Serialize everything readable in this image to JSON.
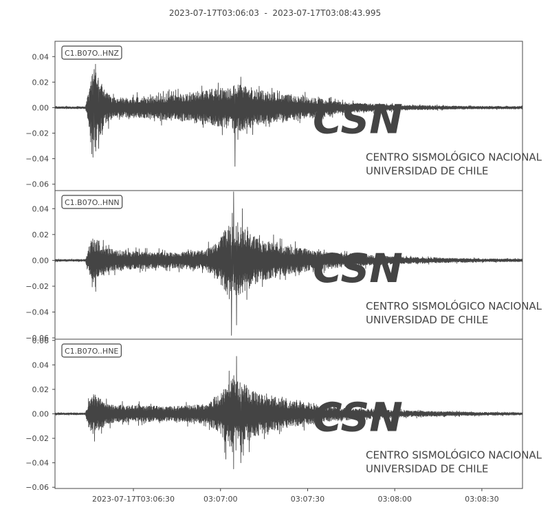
{
  "title": "2023-07-17T03:06:03  -  2023-07-17T03:08:43.995",
  "colors": {
    "trace": "#444444",
    "frame": "#444444",
    "watermark": "#e6e6e6"
  },
  "watermark": {
    "logo": "CSN",
    "line1": "CENTRO SISMOLÓGICO NACIONAL",
    "line2": "UNIVERSIDAD DE CHILE"
  },
  "chart_data": [
    {
      "type": "line",
      "label": "C1.B07O..HNZ",
      "x_range_seconds": [
        0,
        160.995
      ],
      "ylim": [
        -0.065,
        0.052
      ],
      "yticks": [
        0.04,
        0.02,
        0.0,
        -0.02,
        -0.04,
        -0.06
      ],
      "ytick_labels": [
        "0.04",
        "0.02",
        "0.00",
        "−0.02",
        "−0.04",
        "−0.06"
      ],
      "onset_s": 10.5,
      "coda_s": 61,
      "envelope_time_s": [
        0,
        10.5,
        11.5,
        13,
        15,
        17,
        20,
        30,
        45,
        52,
        60,
        62,
        70,
        85,
        100,
        120,
        140,
        161
      ],
      "envelope_amp": [
        0.0008,
        0.0008,
        0.012,
        0.028,
        0.024,
        0.014,
        0.008,
        0.008,
        0.011,
        0.014,
        0.016,
        0.02,
        0.014,
        0.009,
        0.004,
        0.002,
        0.0012,
        0.001
      ],
      "peaks": [
        {
          "t": 13.5,
          "y": 0.03
        },
        {
          "t": 14.0,
          "y": -0.034
        },
        {
          "t": 15.0,
          "y": -0.032
        },
        {
          "t": 62.0,
          "y": -0.046
        },
        {
          "t": 64.0,
          "y": 0.024
        },
        {
          "t": 63.0,
          "y": -0.025
        }
      ]
    },
    {
      "type": "line",
      "label": "C1.B07O..HNN",
      "x_range_seconds": [
        0,
        160.995
      ],
      "ylim": [
        -0.061,
        0.054
      ],
      "yticks": [
        0.04,
        0.02,
        0.0,
        -0.02,
        -0.04,
        -0.06
      ],
      "ytick_labels": [
        "0.04",
        "0.02",
        "0.00",
        "−0.02",
        "−0.04",
        "−0.06"
      ],
      "onset_s": 10.5,
      "coda_s": 57,
      "envelope_time_s": [
        0,
        10.5,
        11.5,
        13,
        15,
        18,
        25,
        40,
        52,
        57,
        60,
        63,
        70,
        80,
        95,
        115,
        140,
        161
      ],
      "envelope_amp": [
        0.0008,
        0.0008,
        0.01,
        0.018,
        0.016,
        0.009,
        0.007,
        0.006,
        0.008,
        0.018,
        0.03,
        0.028,
        0.017,
        0.011,
        0.006,
        0.003,
        0.0015,
        0.001
      ],
      "peaks": [
        {
          "t": 61.5,
          "y": 0.053
        },
        {
          "t": 60.8,
          "y": -0.058
        },
        {
          "t": 62.5,
          "y": -0.05
        },
        {
          "t": 64.5,
          "y": 0.04
        },
        {
          "t": 14.0,
          "y": -0.024
        }
      ]
    },
    {
      "type": "line",
      "label": "C1.B07O..HNE",
      "x_range_seconds": [
        0,
        160.995
      ],
      "ylim": [
        -0.061,
        0.061
      ],
      "yticks": [
        0.06,
        0.04,
        0.02,
        0.0,
        -0.02,
        -0.04,
        -0.06
      ],
      "ytick_labels": [
        "0.06",
        "0.04",
        "0.02",
        "0.00",
        "−0.02",
        "−0.04",
        "−0.06"
      ],
      "xticks_s": [
        27,
        57,
        87,
        117,
        147
      ],
      "xtick_labels": [
        "2023-07-17T03:06:30",
        "03:07:00",
        "03:07:30",
        "03:08:00",
        "03:08:30"
      ],
      "onset_s": 10.5,
      "coda_s": 57,
      "envelope_time_s": [
        0,
        10.5,
        11.5,
        13,
        15,
        18,
        25,
        40,
        52,
        57,
        60,
        63,
        70,
        80,
        95,
        115,
        140,
        161
      ],
      "envelope_amp": [
        0.0008,
        0.0008,
        0.01,
        0.017,
        0.014,
        0.008,
        0.007,
        0.006,
        0.008,
        0.016,
        0.028,
        0.027,
        0.018,
        0.011,
        0.006,
        0.003,
        0.0015,
        0.001
      ],
      "peaks": [
        {
          "t": 62.5,
          "y": 0.047
        },
        {
          "t": 61.5,
          "y": -0.045
        },
        {
          "t": 60.0,
          "y": 0.035
        },
        {
          "t": 58.8,
          "y": -0.037
        },
        {
          "t": 64.0,
          "y": -0.04
        }
      ]
    }
  ]
}
